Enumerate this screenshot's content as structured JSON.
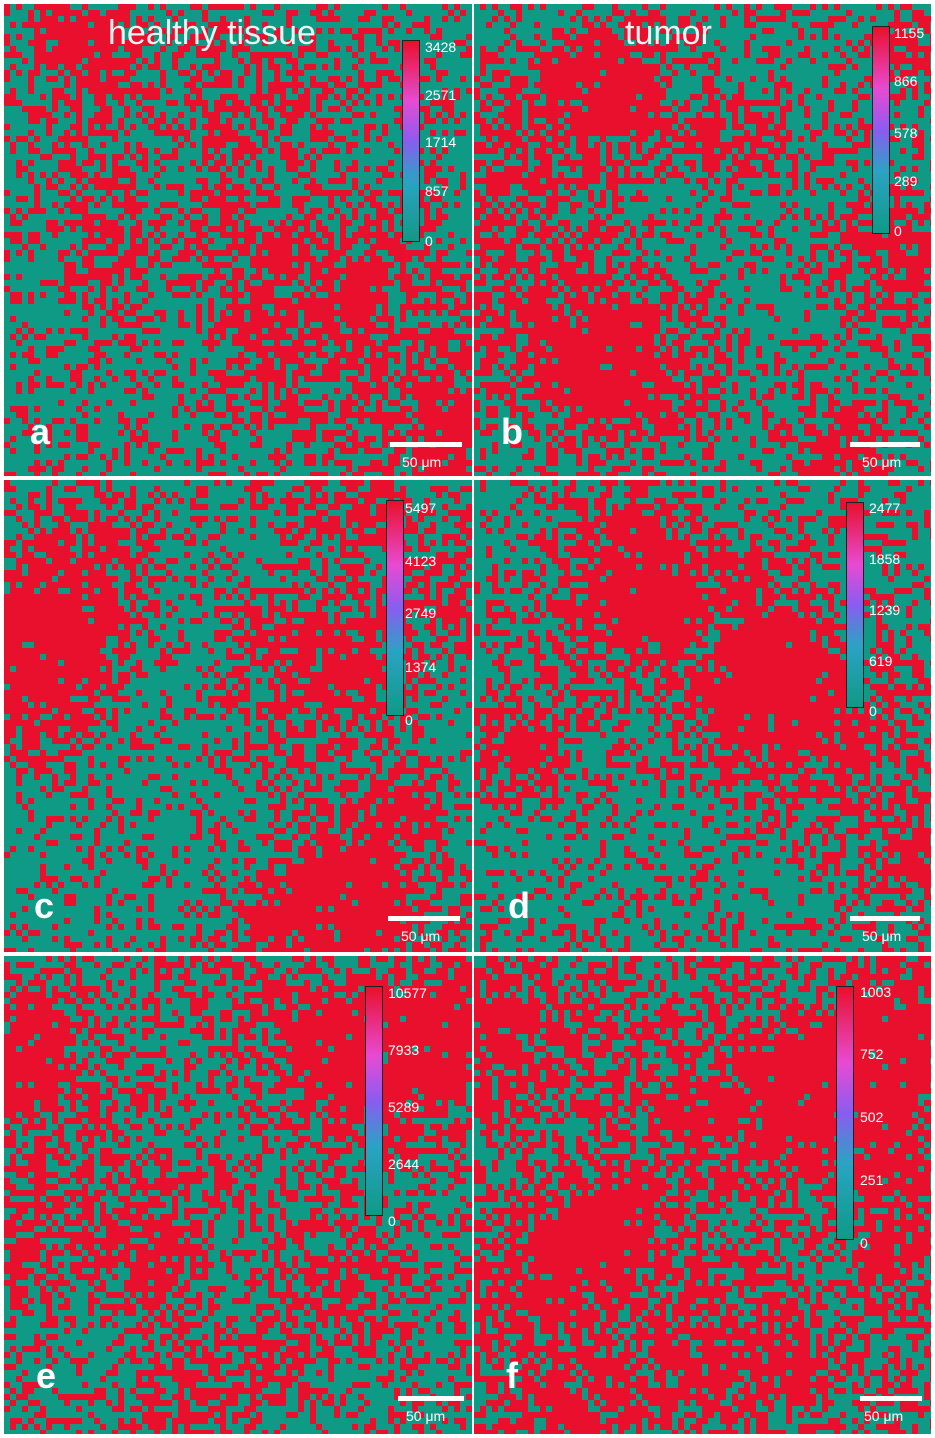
{
  "columns": {
    "left_title": "healthy tissue",
    "right_title": "tumor"
  },
  "colors": {
    "low": "#0f9a86",
    "high": "#e8102c",
    "mid1": "#2aa3c4",
    "mid2": "#8a5cf0",
    "mid3": "#e84ad2"
  },
  "scalebar_text": "50 μm",
  "panels": [
    {
      "label": "a",
      "ticks": [
        "3428",
        "2571",
        "1714",
        "857",
        "0"
      ],
      "red_fraction": 0.45
    },
    {
      "label": "b",
      "ticks": [
        "1155",
        "866",
        "578",
        "289",
        "0"
      ],
      "red_fraction": 0.5
    },
    {
      "label": "c",
      "ticks": [
        "5497",
        "4123",
        "2749",
        "1374",
        "0"
      ],
      "red_fraction": 0.4
    },
    {
      "label": "d",
      "ticks": [
        "2477",
        "1858",
        "1239",
        "619",
        "0"
      ],
      "red_fraction": 0.45
    },
    {
      "label": "e",
      "ticks": [
        "10577",
        "7933",
        "5289",
        "2644",
        "0"
      ],
      "red_fraction": 0.55
    },
    {
      "label": "f",
      "ticks": [
        "1003",
        "752",
        "502",
        "251",
        "0"
      ],
      "red_fraction": 0.75
    }
  ]
}
